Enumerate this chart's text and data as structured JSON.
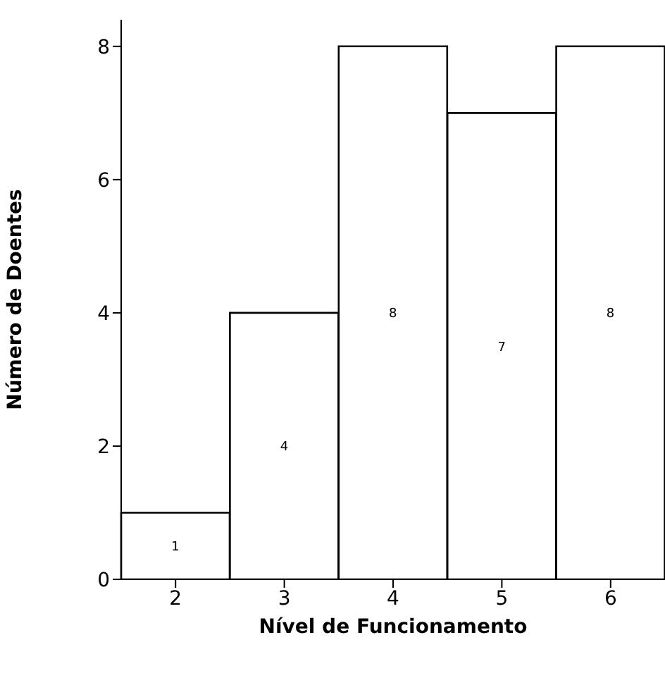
{
  "chart_data": {
    "type": "bar",
    "xlabel": "Nível de Funcionamento",
    "ylabel": "Número de Doentes",
    "categories": [
      "2",
      "3",
      "4",
      "5",
      "6"
    ],
    "values": [
      1,
      4,
      8,
      7,
      8
    ],
    "color": "#ffffff",
    "ylim": [
      0,
      8.4
    ],
    "yticks": [
      0,
      2,
      4,
      6,
      8
    ],
    "data_labels": true,
    "grid": false
  }
}
